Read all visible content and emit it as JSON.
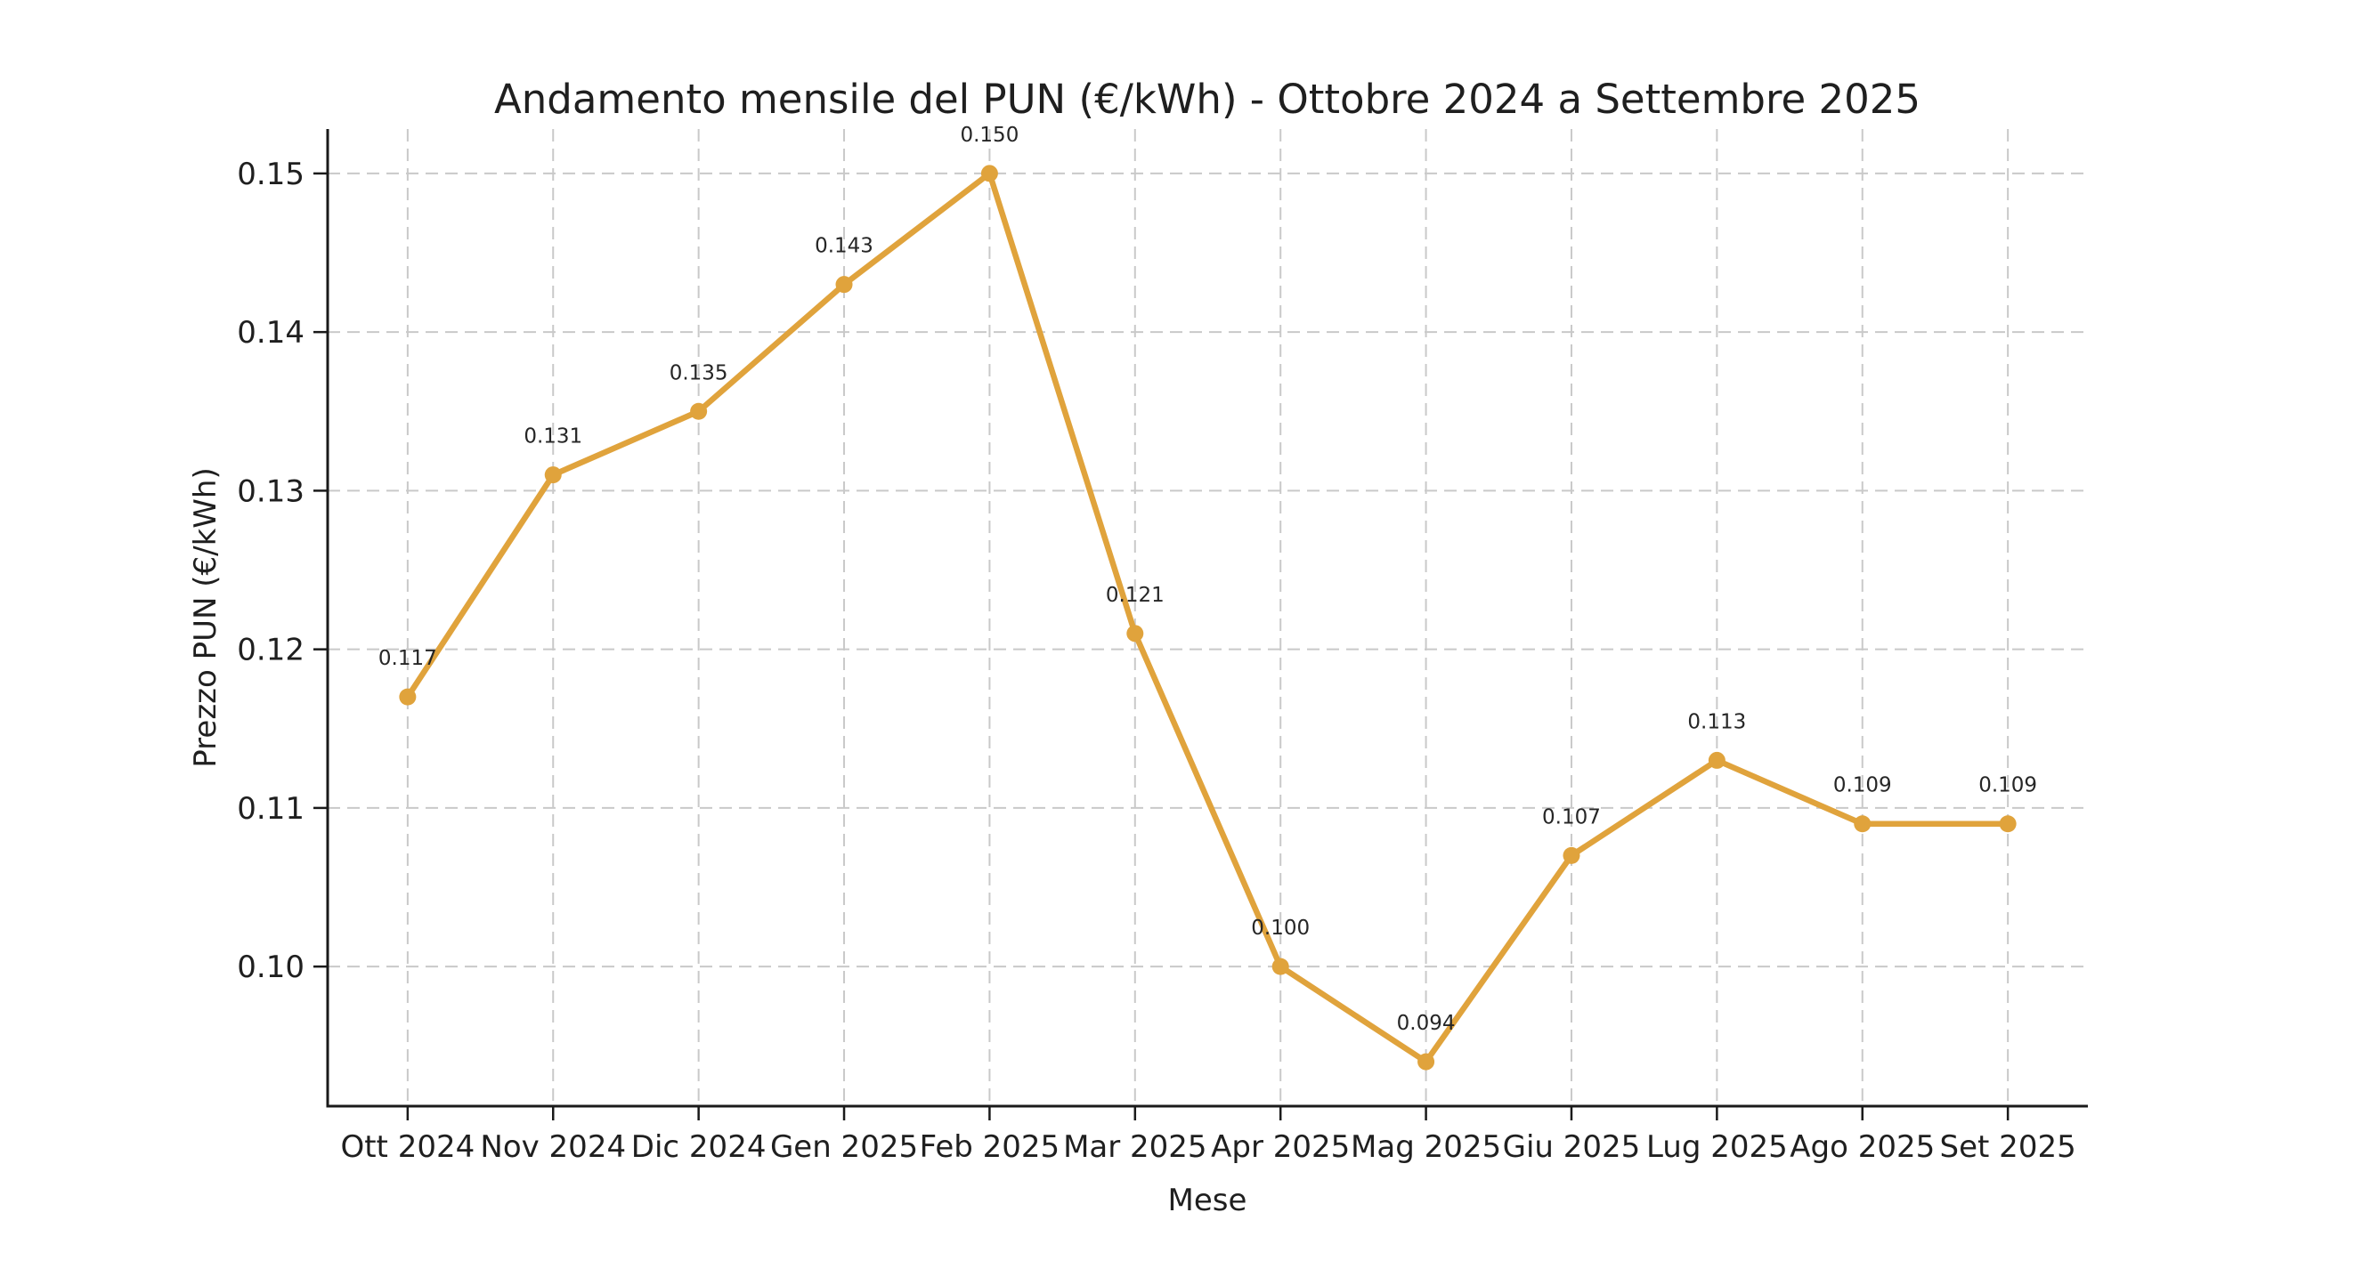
{
  "chart_data": {
    "type": "line",
    "title": "Andamento mensile del PUN (€/kWh) - Ottobre 2024 a Settembre 2025",
    "xlabel": "Mese",
    "ylabel": "Prezzo PUN (€/kWh)",
    "categories": [
      "Ott 2024",
      "Nov 2024",
      "Dic 2024",
      "Gen 2025",
      "Feb 2025",
      "Mar 2025",
      "Apr 2025",
      "Mag 2025",
      "Giu 2025",
      "Lug 2025",
      "Ago 2025",
      "Set 2025"
    ],
    "values": [
      0.117,
      0.131,
      0.135,
      0.143,
      0.15,
      0.121,
      0.1,
      0.094,
      0.107,
      0.113,
      0.109,
      0.109
    ],
    "point_labels": [
      "0.117",
      "0.131",
      "0.135",
      "0.143",
      "0.150",
      "0.121",
      "0.100",
      "0.094",
      "0.107",
      "0.113",
      "0.109",
      "0.109"
    ],
    "y_ticks": [
      0.15,
      0.14,
      0.13,
      0.12,
      0.11,
      0.1
    ],
    "y_tick_labels": [
      "0.15",
      "0.14",
      "0.13",
      "0.12",
      "0.11",
      "0.10"
    ],
    "ylim": [
      0.0912,
      0.1528
    ],
    "grid": true,
    "grid_style": "dashed",
    "legend": false,
    "line_color": "#E0A33C",
    "marker_color": "#E0A33C",
    "grid_color": "#c9c9c9",
    "spine_color": "#1a1a1a",
    "tick_text_color": "#1f1f1f",
    "annotation_color": "#262626"
  }
}
